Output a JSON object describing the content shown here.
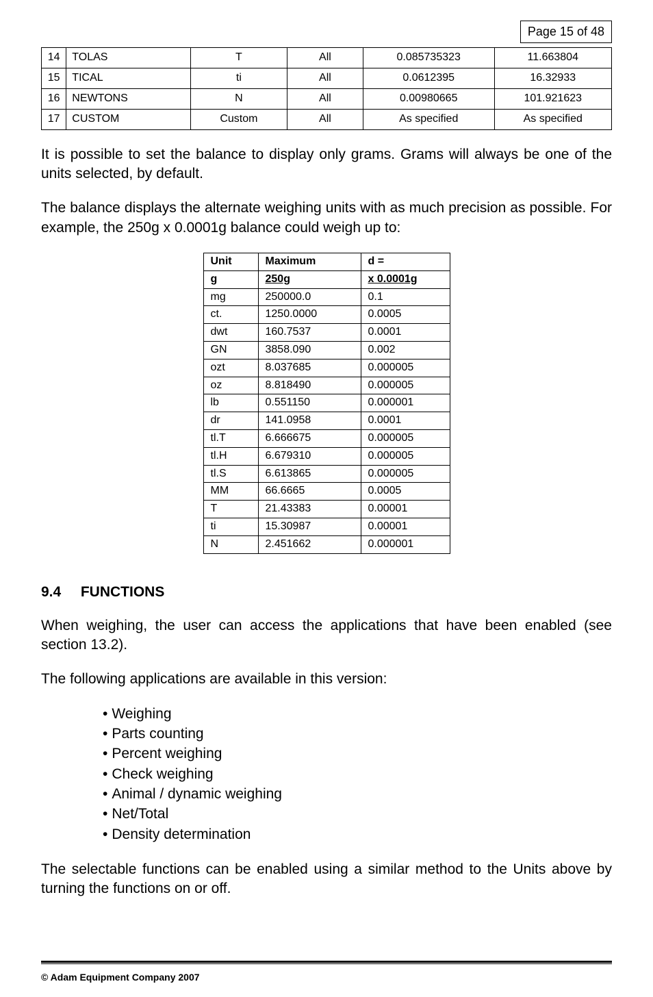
{
  "page_label": "Page 15 of 48",
  "table1": {
    "rows": [
      {
        "idx": "14",
        "name": "TOLAS",
        "symbol": "T",
        "scope": "All",
        "factor": "0.085735323",
        "value": "11.663804"
      },
      {
        "idx": "15",
        "name": "TICAL",
        "symbol": "ti",
        "scope": "All",
        "factor": "0.0612395",
        "value": "16.32933"
      },
      {
        "idx": "16",
        "name": "NEWTONS",
        "symbol": "N",
        "scope": "All",
        "factor": "0.00980665",
        "value": "101.921623"
      },
      {
        "idx": "17",
        "name": "CUSTOM",
        "symbol": "Custom",
        "scope": "All",
        "factor": "As specified",
        "value": "As specified"
      }
    ]
  },
  "para1": "It is possible to set the balance to display only grams.  Grams will always be one of the units selected, by default.",
  "para2": "The balance displays the alternate weighing units with as much precision as possible.  For example, the 250g x 0.0001g balance could weigh up to:",
  "table2": {
    "header": {
      "unit": "Unit",
      "max": "Maximum",
      "d": "d ="
    },
    "bold_row": {
      "unit": "g",
      "max": "250g",
      "d": "x 0.0001g"
    },
    "rows": [
      {
        "unit": "mg",
        "max": "250000.0",
        "d": "0.1"
      },
      {
        "unit": "ct.",
        "max": "1250.0000",
        "d": "0.0005"
      },
      {
        "unit": "dwt",
        "max": "160.7537",
        "d": "0.0001"
      },
      {
        "unit": "GN",
        "max": "3858.090",
        "d": "0.002"
      },
      {
        "unit": "ozt",
        "max": "8.037685",
        "d": "0.000005"
      },
      {
        "unit": "oz",
        "max": "8.818490",
        "d": "0.000005"
      },
      {
        "unit": "lb",
        "max": "0.551150",
        "d": "0.000001"
      },
      {
        "unit": "dr",
        "max": "141.0958",
        "d": "0.0001"
      },
      {
        "unit": "tl.T",
        "max": "6.666675",
        "d": "0.000005"
      },
      {
        "unit": "tl.H",
        "max": "6.679310",
        "d": "0.000005"
      },
      {
        "unit": "tl.S",
        "max": "6.613865",
        "d": "0.000005"
      },
      {
        "unit": "MM",
        "max": "66.6665",
        "d": "0.0005"
      },
      {
        "unit": "T",
        "max": "21.43383",
        "d": "0.00001"
      },
      {
        "unit": "ti",
        "max": "15.30987",
        "d": "0.00001"
      },
      {
        "unit": "N",
        "max": "2.451662",
        "d": "0.000001"
      }
    ]
  },
  "section": {
    "number": "9.4",
    "title": "FUNCTIONS"
  },
  "para3": "When weighing, the user can access the applications that have been enabled (see section 13.2).",
  "para4": "The following applications are available in this version:",
  "bullets": [
    "Weighing",
    "Parts counting",
    "Percent weighing",
    "Check weighing",
    "Animal / dynamic weighing",
    "Net/Total",
    "Density determination"
  ],
  "para5": "The selectable functions can be enabled using a similar method to the Units above by turning the functions on or off.",
  "footer": "© Adam Equipment Company 2007"
}
